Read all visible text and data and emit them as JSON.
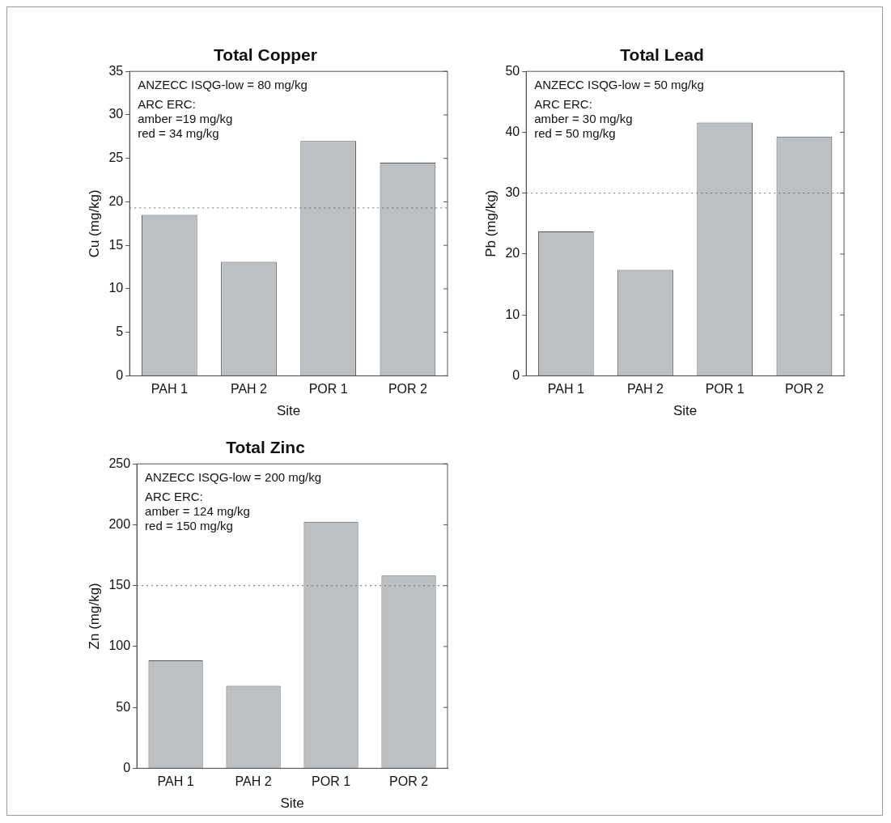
{
  "chart_data": [
    {
      "type": "bar",
      "title": "Total Copper",
      "xlabel": "Site",
      "ylabel": "Cu (mg/kg)",
      "categories": [
        "PAH 1",
        "PAH 2",
        "POR 1",
        "POR 2"
      ],
      "values": [
        18.5,
        13.1,
        27.0,
        24.5
      ],
      "color": "#bcc0c2",
      "ylim": [
        0,
        35
      ],
      "yticks": [
        0,
        5,
        10,
        15,
        20,
        25,
        30,
        35
      ],
      "grid": false,
      "legend": false,
      "ref_lines": [
        {
          "axis": "y",
          "value": 19.3,
          "color": "#707070",
          "line_style": "dotted"
        }
      ],
      "annotations": [
        "ANZECC ISQG-low = 80 mg/kg",
        "ARC ERC:\namber =19 mg/kg\nred = 34 mg/kg"
      ]
    },
    {
      "type": "bar",
      "title": "Total Lead",
      "xlabel": "Site",
      "ylabel": "Pb (mg/kg)",
      "categories": [
        "PAH 1",
        "PAH 2",
        "POR 1",
        "POR 2"
      ],
      "values": [
        23.7,
        17.4,
        41.6,
        39.3
      ],
      "color": "#bcc0c2",
      "ylim": [
        0,
        50
      ],
      "yticks": [
        0,
        10,
        20,
        30,
        40,
        50
      ],
      "grid": false,
      "legend": false,
      "ref_lines": [
        {
          "axis": "y",
          "value": 30,
          "color": "#707070",
          "line_style": "dotted"
        }
      ],
      "annotations": [
        "ANZECC ISQG-low = 50 mg/kg",
        "ARC ERC:\namber = 30 mg/kg\nred = 50 mg/kg"
      ]
    },
    {
      "type": "bar",
      "title": "Total Zinc",
      "xlabel": "Site",
      "ylabel": "Zn (mg/kg)",
      "categories": [
        "PAH 1",
        "PAH 2",
        "POR 1",
        "POR 2"
      ],
      "values": [
        88.6,
        67.7,
        202.4,
        158.2
      ],
      "color": "#bcc0c2",
      "ylim": [
        0,
        250
      ],
      "yticks": [
        0,
        50,
        100,
        150,
        200,
        250
      ],
      "grid": false,
      "legend": false,
      "ref_lines": [
        {
          "axis": "y",
          "value": 150,
          "color": "#707070",
          "line_style": "dotted"
        }
      ],
      "annotations": [
        "ANZECC ISQG-low = 200 mg/kg",
        "ARC ERC:\namber = 124 mg/kg\nred = 150 mg/kg"
      ]
    }
  ]
}
